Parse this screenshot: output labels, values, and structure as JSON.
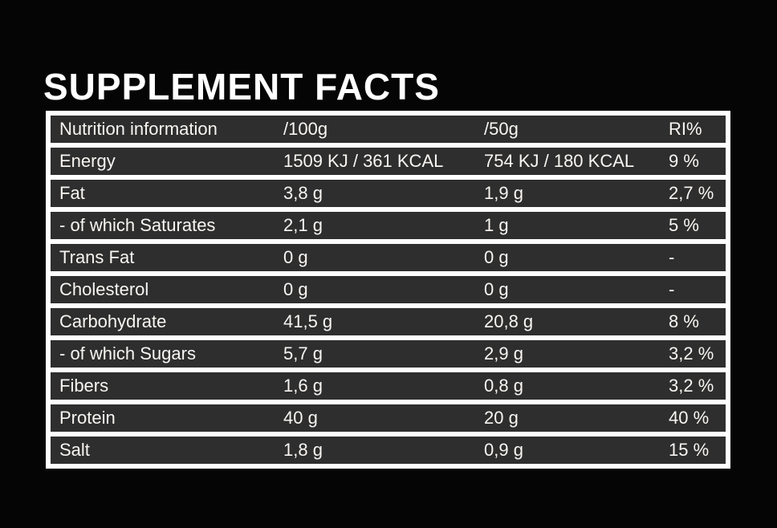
{
  "page": {
    "title": "SUPPLEMENT FACTS",
    "background_color": "#050505",
    "row_color": "#2e2e2e",
    "table_frame_color": "#ffffff",
    "text_color": "#f8f5f2"
  },
  "table": {
    "header": {
      "name": "Nutrition information",
      "per100g": "/100g",
      "per50g": "/50g",
      "ri": "RI%"
    },
    "rows": [
      {
        "label": "Energy",
        "per100g": "1509 KJ / 361 KCAL",
        "per50g": "754 KJ / 180 KCAL",
        "ri": "9 %"
      },
      {
        "label": "Fat",
        "per100g": "3,8 g",
        "per50g": "1,9 g",
        "ri": "2,7 %"
      },
      {
        "label": "- of which Saturates",
        "per100g": "2,1 g",
        "per50g": "1 g",
        "ri": "5 %"
      },
      {
        "label": "Trans Fat",
        "per100g": "0 g",
        "per50g": "0 g",
        "ri": "-"
      },
      {
        "label": "Cholesterol",
        "per100g": "0 g",
        "per50g": "0 g",
        "ri": "-"
      },
      {
        "label": "Carbohydrate",
        "per100g": "41,5 g",
        "per50g": "20,8 g",
        "ri": "8 %"
      },
      {
        "label": "- of which Sugars",
        "per100g": "5,7 g",
        "per50g": "2,9 g",
        "ri": "3,2 %"
      },
      {
        "label": "Fibers",
        "per100g": "1,6 g",
        "per50g": "0,8 g",
        "ri": "3,2 %"
      },
      {
        "label": "Protein",
        "per100g": "40 g",
        "per50g": "20 g",
        "ri": "40 %"
      },
      {
        "label": "Salt",
        "per100g": "1,8 g",
        "per50g": "0,9 g",
        "ri": "15 %"
      }
    ]
  }
}
